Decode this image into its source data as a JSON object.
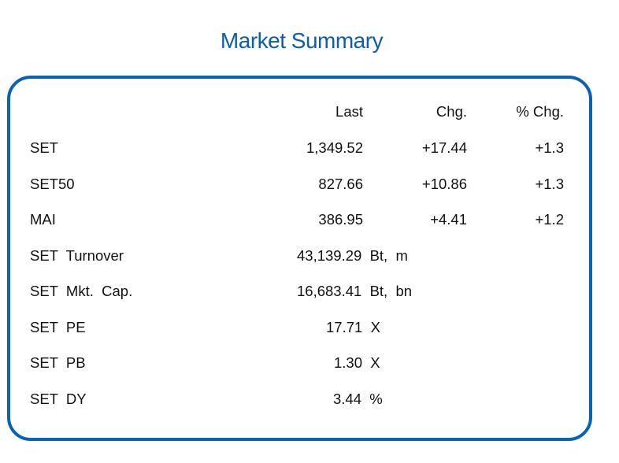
{
  "title": "Market Summary",
  "header": {
    "last": "Last",
    "chg": "Chg.",
    "pct_chg": "% Chg."
  },
  "indices": [
    {
      "name": "SET",
      "last": "1,349.52",
      "chg": "+17.44",
      "pct_chg": "+1.3"
    },
    {
      "name": "SET50",
      "last": "827.66",
      "chg": "+10.86",
      "pct_chg": "+1.3"
    },
    {
      "name": "MAI",
      "last": "386.95",
      "chg": "+4.41",
      "pct_chg": "+1.2"
    }
  ],
  "stats": [
    {
      "name": "SET  Turnover",
      "value": "43,139.29  Bt,  m"
    },
    {
      "name": "SET  Mkt.  Cap.",
      "value": "16,683.41  Bt,  bn"
    },
    {
      "name": "SET  PE",
      "value": "17.71  X"
    },
    {
      "name": "SET  PB",
      "value": "1.30  X"
    },
    {
      "name": "SET  DY",
      "value": "3.44  %"
    }
  ],
  "colors": {
    "title": "#0f5da8",
    "border": "#0a62b3",
    "text": "#111111"
  }
}
